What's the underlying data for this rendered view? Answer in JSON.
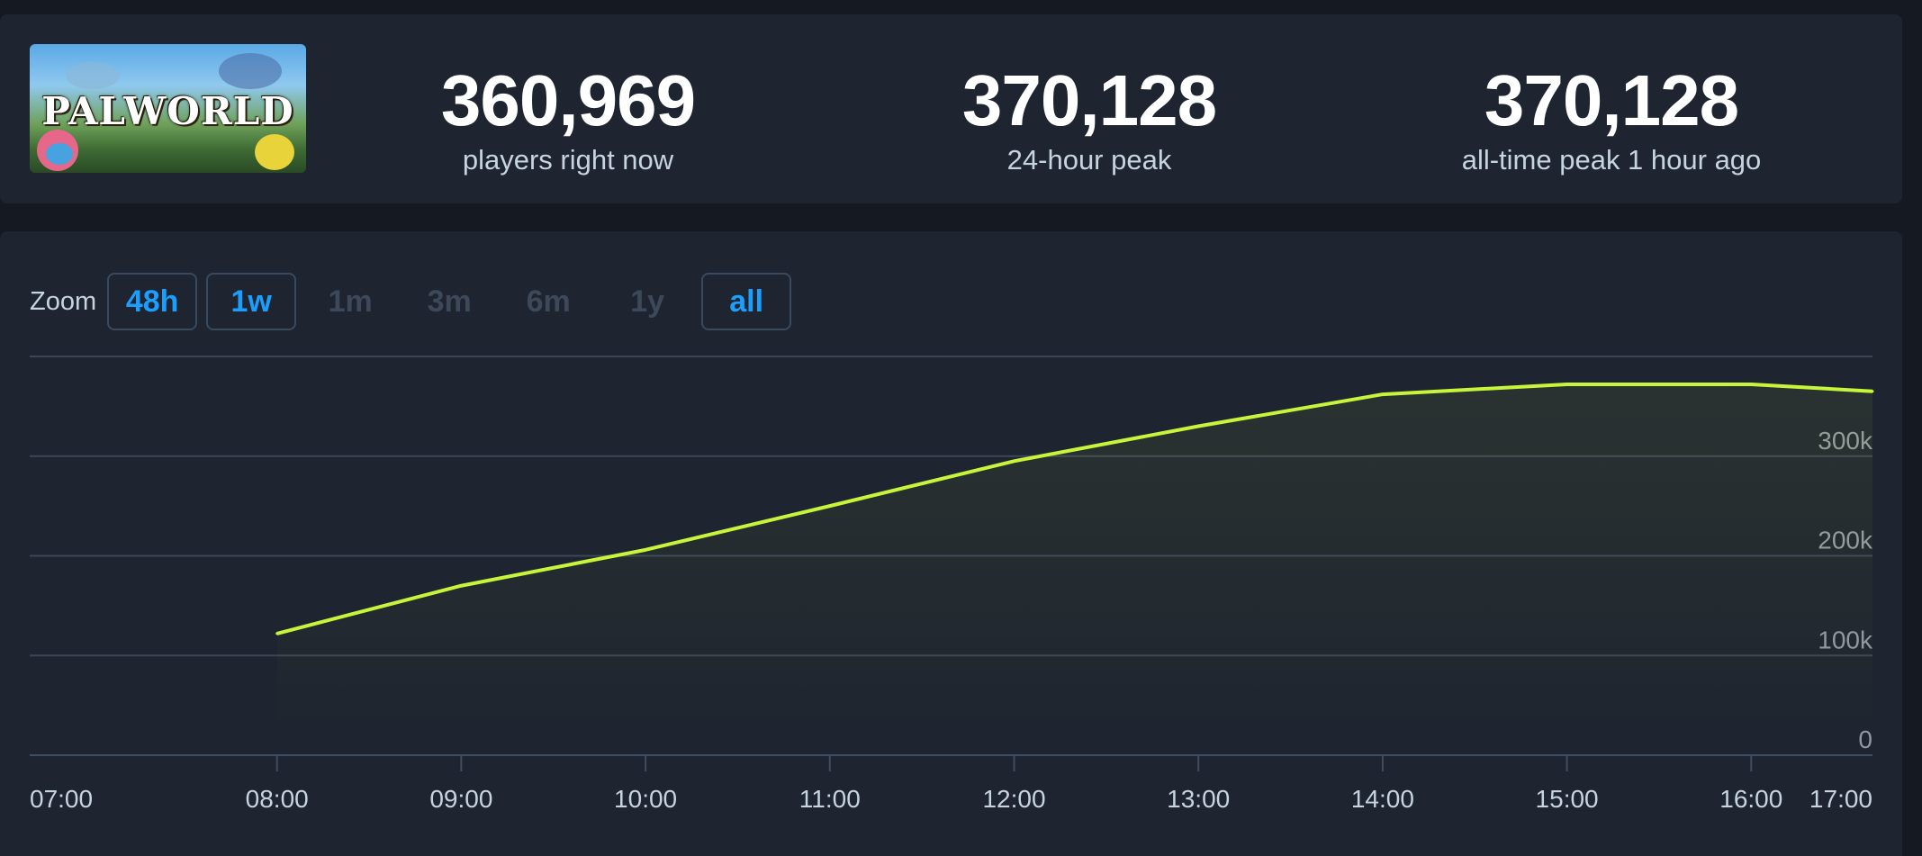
{
  "game": {
    "logo_text": "PALWORLD"
  },
  "stats": [
    {
      "value": "360,969",
      "label": "players right now"
    },
    {
      "value": "370,128",
      "label": "24-hour peak"
    },
    {
      "value": "370,128",
      "label": "all-time peak 1 hour ago"
    }
  ],
  "zoom": {
    "label": "Zoom",
    "options": [
      {
        "label": "48h",
        "state": "active"
      },
      {
        "label": "1w",
        "state": "active"
      },
      {
        "label": "1m",
        "state": "disabled"
      },
      {
        "label": "3m",
        "state": "disabled"
      },
      {
        "label": "6m",
        "state": "disabled"
      },
      {
        "label": "1y",
        "state": "disabled"
      },
      {
        "label": "all",
        "state": "active"
      }
    ]
  },
  "colors": {
    "line": "#c7f53a",
    "grid": "#3b4656",
    "active": "#1a9fff"
  },
  "chart_data": {
    "type": "line",
    "x": [
      "08:00",
      "09:00",
      "10:00",
      "11:00",
      "12:00",
      "13:00",
      "14:00",
      "15:00",
      "16:00",
      "17:00"
    ],
    "series": [
      {
        "values": [
          122000,
          170000,
          206000,
          250000,
          295000,
          330000,
          362000,
          372000,
          372000,
          365000
        ]
      }
    ],
    "xticks": [
      "07:00",
      "08:00",
      "09:00",
      "10:00",
      "11:00",
      "12:00",
      "13:00",
      "14:00",
      "15:00",
      "16:00",
      "17:00"
    ],
    "yticks": [
      {
        "value": 0,
        "label": "0"
      },
      {
        "value": 100000,
        "label": "100k"
      },
      {
        "value": 200000,
        "label": "200k"
      },
      {
        "value": 300000,
        "label": "300k"
      }
    ],
    "ylim": [
      0,
      400000
    ],
    "grid": true
  }
}
